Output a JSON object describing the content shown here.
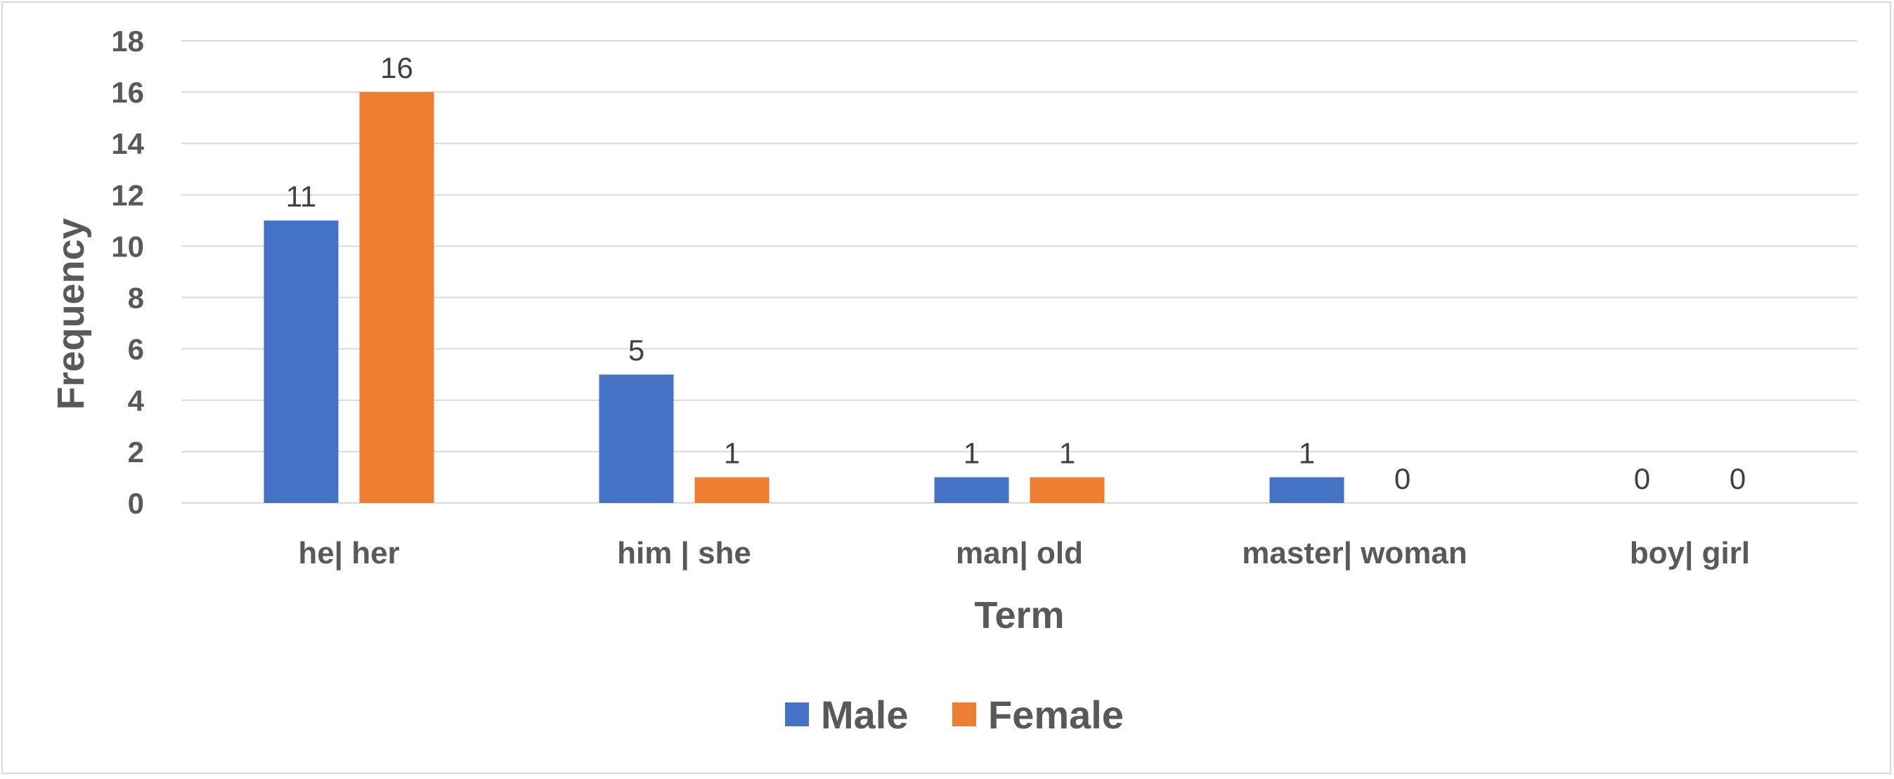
{
  "chart_data": {
    "type": "bar",
    "categories": [
      "he| her",
      "him | she",
      "man| old",
      "master| woman",
      "boy| girl"
    ],
    "series": [
      {
        "name": "Male",
        "values": [
          11,
          5,
          1,
          1,
          0
        ],
        "color": "#4472c4"
      },
      {
        "name": "Female",
        "values": [
          16,
          1,
          1,
          0,
          0
        ],
        "color": "#ed7d31"
      }
    ],
    "xlabel": "Term",
    "ylabel": "Frequency",
    "ylim": [
      0,
      18
    ],
    "yticks": [
      0,
      2,
      4,
      6,
      8,
      10,
      12,
      14,
      16,
      18
    ],
    "grid": true,
    "data_labels": true,
    "legend_position": "bottom"
  }
}
